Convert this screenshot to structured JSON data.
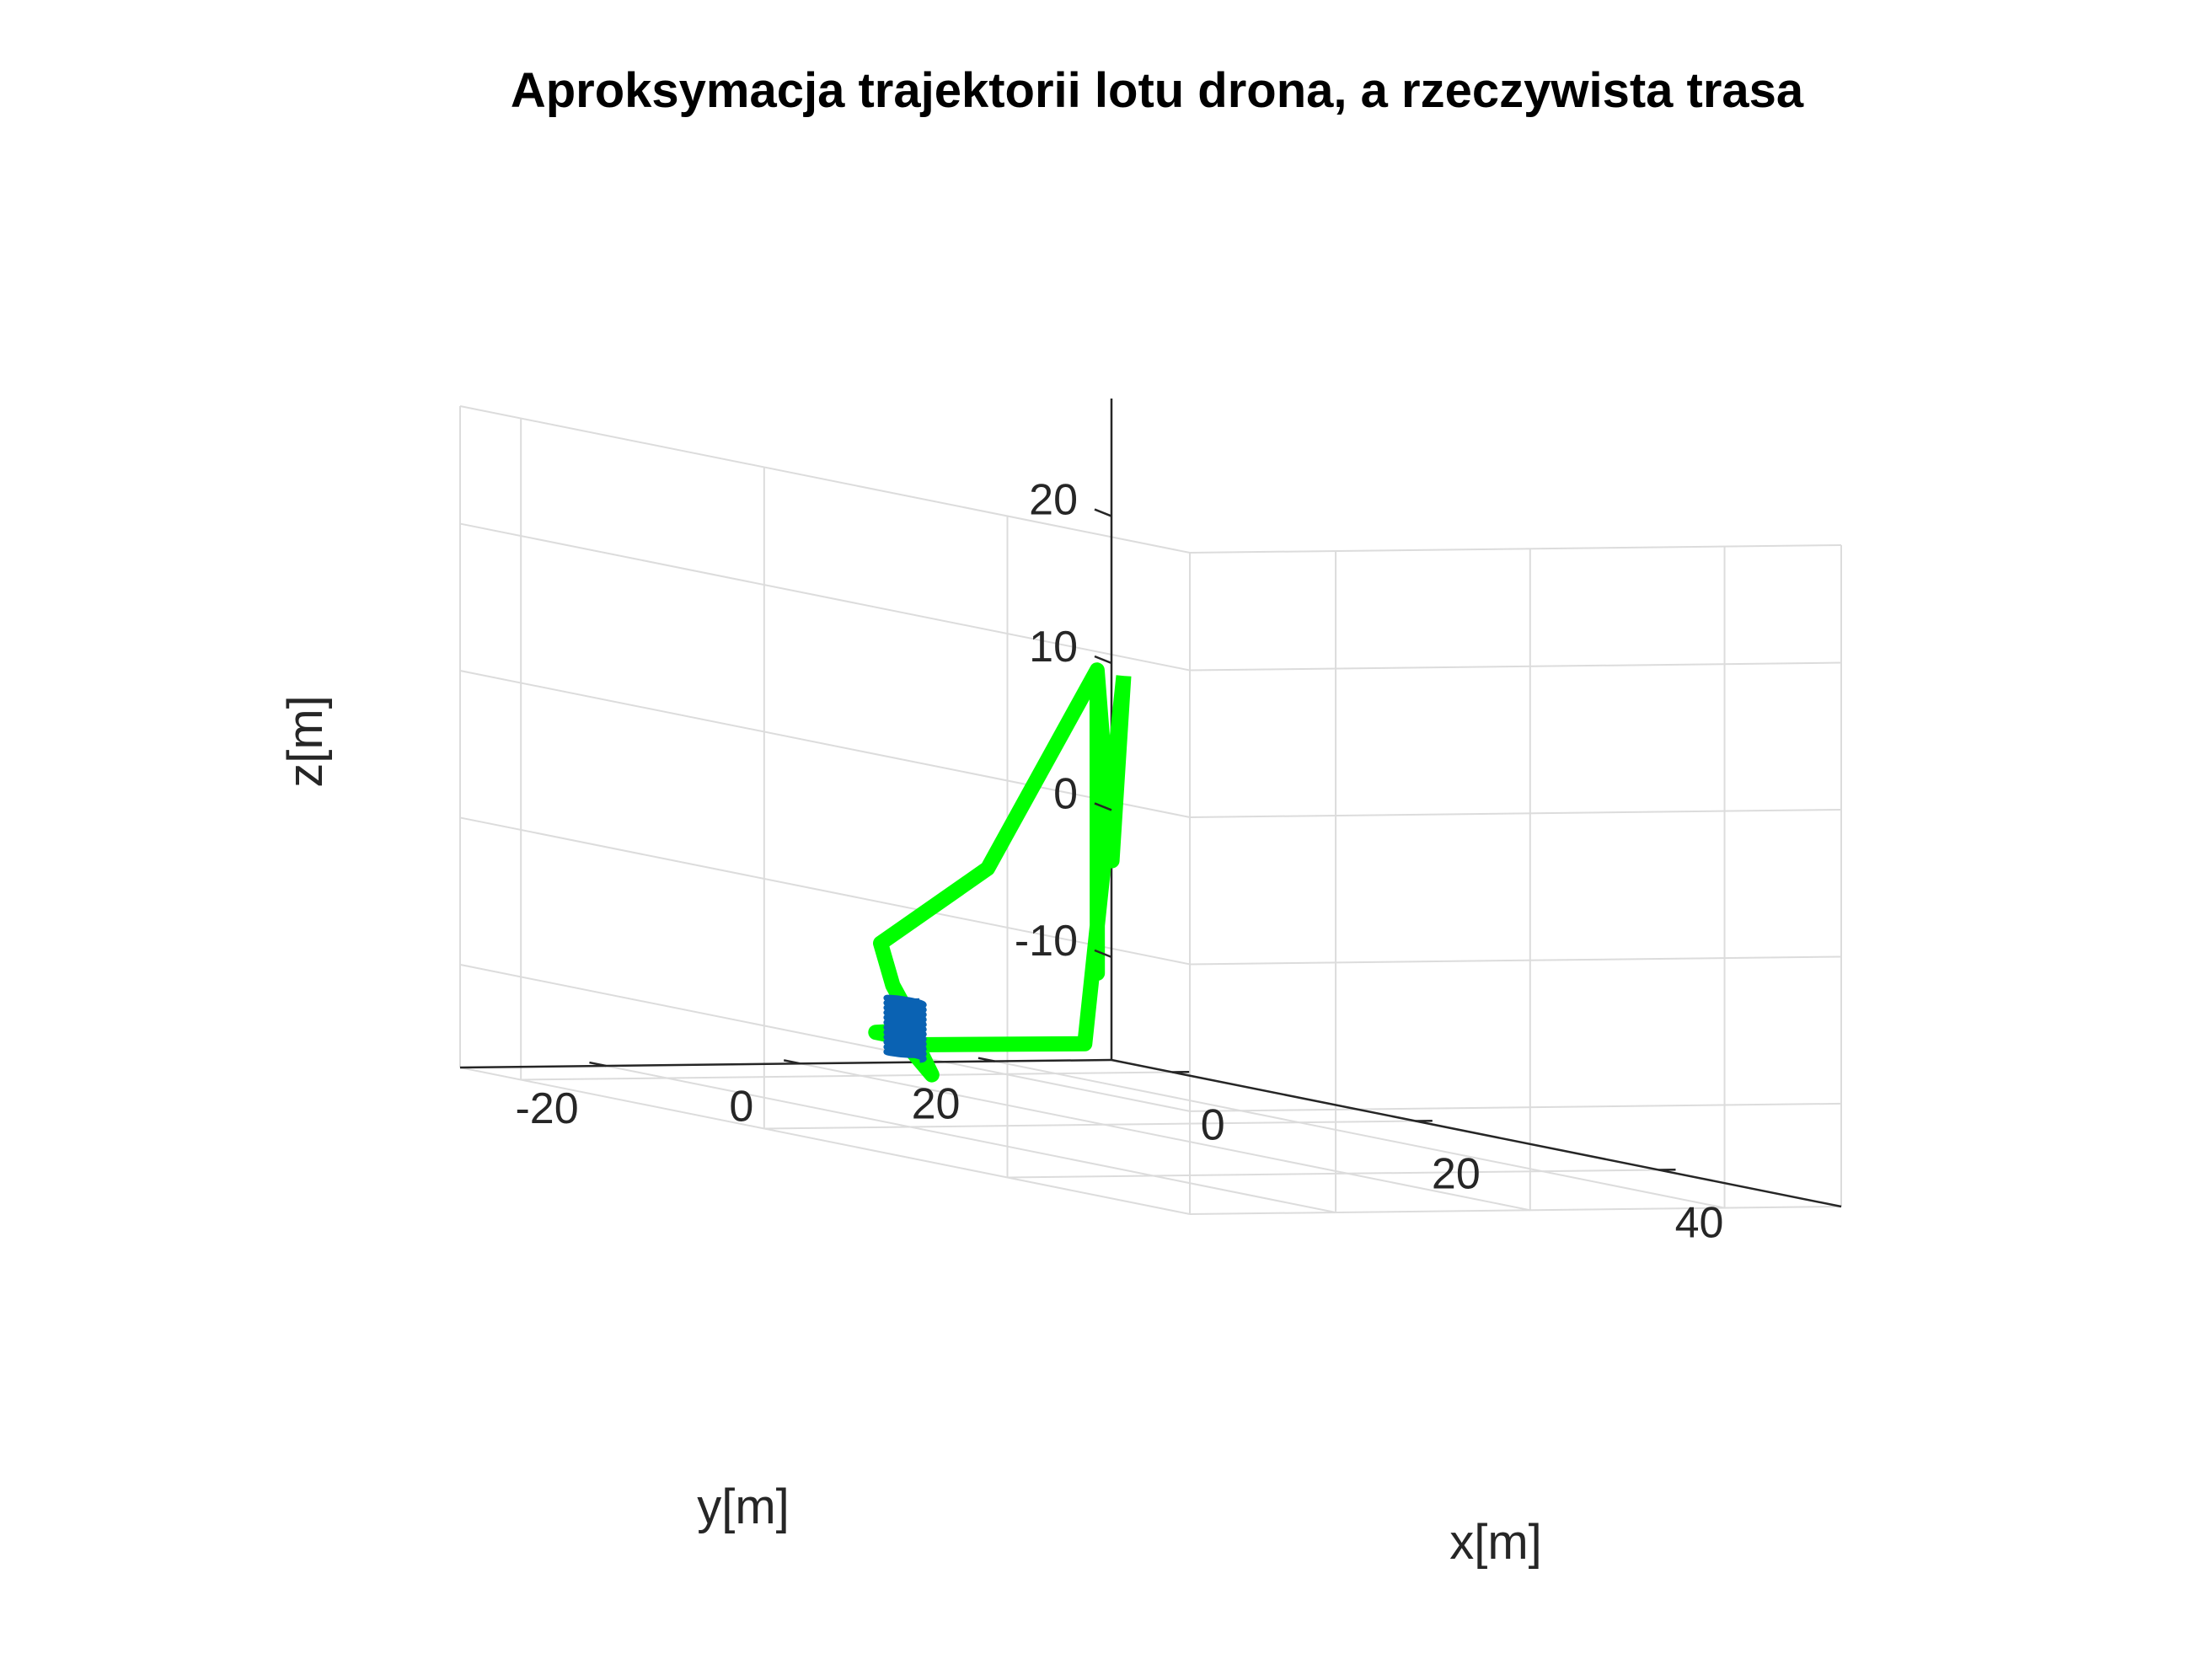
{
  "chart_data": {
    "type": "line",
    "projection": "3d",
    "title": "Aproksymacja trajektorii lotu drona, a rzeczywista trasa",
    "xlabel": "x[m]",
    "ylabel": "y[m]",
    "zlabel": "z[m]",
    "xlim": [
      -5,
      55
    ],
    "ylim": [
      -35,
      32
    ],
    "zlim": [
      -17,
      28
    ],
    "xticks": [
      "0",
      "20",
      "40"
    ],
    "yticks": [
      "-20",
      "0",
      "20"
    ],
    "zticks": [
      "-10",
      "0",
      "10",
      "20"
    ],
    "grid": true,
    "series": [
      {
        "color": "#00ff00",
        "style": "thick-line",
        "points": [
          [
            0,
            27,
            10
          ],
          [
            43,
            -28,
            5
          ],
          [
            9,
            13,
            12
          ],
          [
            41,
            -27,
            -3
          ],
          [
            9,
            13,
            12
          ],
          [
            0,
            13,
            -3
          ],
          [
            0,
            2,
            -8
          ],
          [
            5,
            -3,
            -10
          ],
          [
            11,
            -8,
            -12
          ],
          [
            6,
            -6,
            -13
          ],
          [
            8,
            -6,
            -13
          ],
          [
            17,
            -14,
            -14
          ],
          [
            11,
            -8,
            -13
          ],
          [
            0,
            23,
            -15
          ],
          [
            0,
            27,
            10
          ]
        ]
      },
      {
        "color": "#0a62b3",
        "style": "coil",
        "center": [
          10,
          -8,
          -12
        ],
        "radius": 1.2,
        "z_range": [
          -14,
          -10
        ]
      }
    ]
  }
}
